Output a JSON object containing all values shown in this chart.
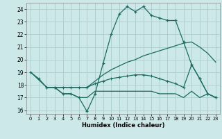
{
  "bg_color": "#cce8e8",
  "line_color": "#1a6b60",
  "grid_color": "#aacccc",
  "xlabel": "Humidex (Indice chaleur)",
  "xlim": [
    -0.5,
    23.5
  ],
  "ylim": [
    15.7,
    24.5
  ],
  "yticks": [
    16,
    17,
    18,
    19,
    20,
    21,
    22,
    23,
    24
  ],
  "xticks": [
    0,
    1,
    2,
    3,
    4,
    5,
    6,
    7,
    8,
    9,
    10,
    11,
    12,
    13,
    14,
    15,
    16,
    17,
    18,
    19,
    20,
    21,
    22,
    23
  ],
  "line1_x": [
    0,
    1,
    2,
    3,
    4,
    5,
    6,
    7,
    8,
    9,
    10,
    11,
    12,
    13,
    14,
    15,
    16,
    17,
    18,
    19,
    20,
    21,
    22,
    23
  ],
  "line1_y": [
    19.0,
    18.5,
    17.8,
    17.8,
    17.3,
    17.3,
    17.0,
    15.9,
    17.3,
    19.7,
    22.0,
    23.6,
    24.2,
    23.8,
    24.2,
    23.5,
    23.3,
    23.1,
    23.1,
    21.4,
    19.6,
    18.5,
    17.3,
    17.0
  ],
  "line2_x": [
    0,
    2,
    3,
    4,
    5,
    6,
    7,
    8,
    9,
    10,
    11,
    12,
    13,
    14,
    15,
    16,
    17,
    18,
    19,
    20,
    21,
    22,
    23
  ],
  "line2_y": [
    19.0,
    17.8,
    17.8,
    17.8,
    17.8,
    17.8,
    17.8,
    18.3,
    18.8,
    19.2,
    19.5,
    19.8,
    20.0,
    20.3,
    20.5,
    20.7,
    20.9,
    21.1,
    21.3,
    21.4,
    21.0,
    20.5,
    19.8
  ],
  "line3_x": [
    2,
    3,
    4,
    5,
    6,
    7,
    8,
    9,
    10,
    11,
    12,
    13,
    14,
    15,
    16,
    17,
    18,
    19,
    20,
    21,
    22,
    23
  ],
  "line3_y": [
    17.8,
    17.8,
    17.8,
    17.8,
    17.8,
    17.8,
    18.1,
    18.3,
    18.5,
    18.6,
    18.7,
    18.8,
    18.8,
    18.7,
    18.5,
    18.3,
    18.1,
    17.8,
    19.6,
    18.5,
    17.3,
    17.0
  ],
  "line4_x": [
    2,
    3,
    4,
    5,
    6,
    7,
    8,
    9,
    10,
    11,
    12,
    13,
    14,
    15,
    16,
    17,
    18,
    19,
    20,
    21,
    22,
    23
  ],
  "line4_y": [
    17.8,
    17.8,
    17.3,
    17.3,
    17.0,
    17.0,
    17.5,
    17.5,
    17.5,
    17.5,
    17.5,
    17.5,
    17.5,
    17.5,
    17.3,
    17.3,
    17.3,
    17.0,
    17.5,
    17.0,
    17.3,
    17.0
  ]
}
